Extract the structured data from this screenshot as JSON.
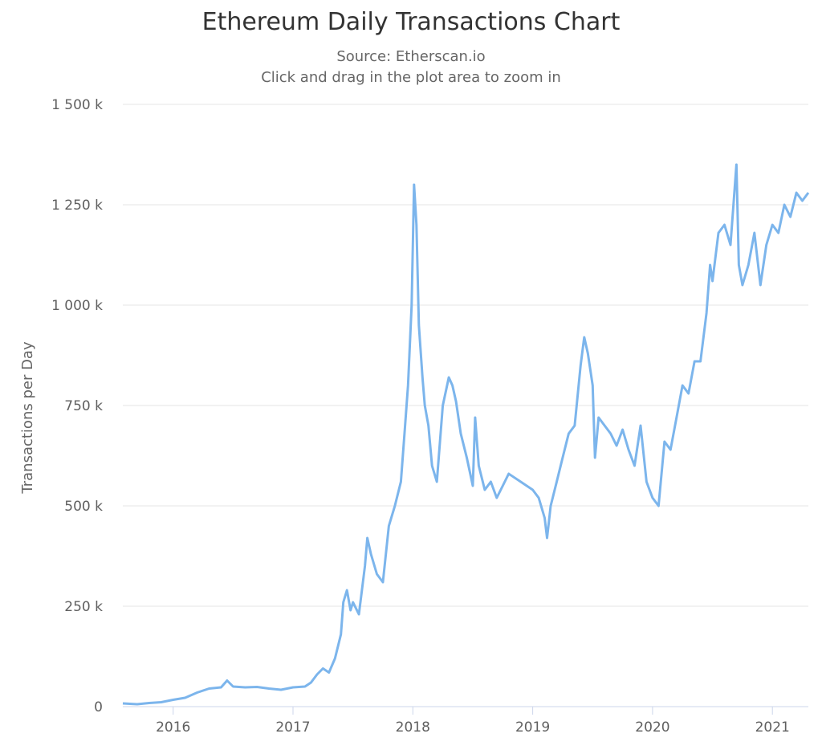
{
  "chart_data": {
    "type": "line",
    "title": "Ethereum Daily Transactions Chart",
    "subtitle": [
      "Source: Etherscan.io",
      "Click and drag in the plot area to zoom in"
    ],
    "xlabel": "",
    "ylabel": "Transactions per Day",
    "xlim": [
      2015.58,
      2021.3
    ],
    "ylim": [
      0,
      1500000
    ],
    "grid": true,
    "line_color": "#7cb5ec",
    "x_tick_values": [
      2016,
      2017,
      2018,
      2019,
      2020,
      2021
    ],
    "x_tick_labels": [
      "2016",
      "2017",
      "2018",
      "2019",
      "2020",
      "2021"
    ],
    "y_tick_values": [
      0,
      250000,
      500000,
      750000,
      1000000,
      1250000,
      1500000
    ],
    "y_tick_labels": [
      "0",
      "250 k",
      "500 k",
      "750 k",
      "1 000 k",
      "1 250 k",
      "1 500 k"
    ],
    "series": [
      {
        "x": [
          2015.58,
          2015.7,
          2015.8,
          2015.9,
          2016.0,
          2016.1,
          2016.2,
          2016.3,
          2016.4,
          2016.45,
          2016.5,
          2016.6,
          2016.7,
          2016.8,
          2016.9,
          2017.0,
          2017.1,
          2017.15,
          2017.2,
          2017.25,
          2017.3,
          2017.35,
          2017.4,
          2017.42,
          2017.45,
          2017.48,
          2017.5,
          2017.55,
          2017.6,
          2017.62,
          2017.65,
          2017.7,
          2017.75,
          2017.8,
          2017.85,
          2017.9,
          2017.93,
          2017.96,
          2017.99,
          2018.01,
          2018.03,
          2018.05,
          2018.08,
          2018.1,
          2018.13,
          2018.16,
          2018.2,
          2018.25,
          2018.3,
          2018.33,
          2018.36,
          2018.4,
          2018.45,
          2018.5,
          2018.52,
          2018.55,
          2018.6,
          2018.65,
          2018.7,
          2018.75,
          2018.8,
          2018.9,
          2019.0,
          2019.05,
          2019.1,
          2019.12,
          2019.15,
          2019.2,
          2019.25,
          2019.3,
          2019.35,
          2019.4,
          2019.43,
          2019.46,
          2019.5,
          2019.52,
          2019.55,
          2019.6,
          2019.65,
          2019.7,
          2019.75,
          2019.8,
          2019.85,
          2019.9,
          2019.95,
          2020.0,
          2020.05,
          2020.1,
          2020.15,
          2020.2,
          2020.25,
          2020.3,
          2020.35,
          2020.4,
          2020.45,
          2020.48,
          2020.5,
          2020.55,
          2020.6,
          2020.65,
          2020.7,
          2020.72,
          2020.75,
          2020.8,
          2020.85,
          2020.9,
          2020.95,
          2021.0,
          2021.05,
          2021.1,
          2021.15,
          2021.2,
          2021.25,
          2021.3
        ],
        "y": [
          8000,
          6000,
          9000,
          11000,
          17000,
          22000,
          35000,
          45000,
          48000,
          65000,
          50000,
          48000,
          49000,
          45000,
          42000,
          48000,
          50000,
          60000,
          80000,
          95000,
          85000,
          120000,
          180000,
          260000,
          290000,
          240000,
          260000,
          230000,
          350000,
          420000,
          380000,
          330000,
          310000,
          450000,
          500000,
          560000,
          680000,
          800000,
          1000000,
          1300000,
          1200000,
          950000,
          820000,
          750000,
          700000,
          600000,
          560000,
          750000,
          820000,
          800000,
          760000,
          680000,
          620000,
          550000,
          720000,
          600000,
          540000,
          560000,
          520000,
          550000,
          580000,
          560000,
          540000,
          520000,
          470000,
          420000,
          500000,
          560000,
          620000,
          680000,
          700000,
          850000,
          920000,
          880000,
          800000,
          620000,
          720000,
          700000,
          680000,
          650000,
          690000,
          640000,
          600000,
          700000,
          560000,
          520000,
          500000,
          660000,
          640000,
          720000,
          800000,
          780000,
          860000,
          860000,
          980000,
          1100000,
          1060000,
          1180000,
          1200000,
          1150000,
          1350000,
          1100000,
          1050000,
          1100000,
          1180000,
          1050000,
          1150000,
          1200000,
          1180000,
          1250000,
          1220000,
          1280000,
          1260000,
          1280000
        ]
      }
    ]
  }
}
